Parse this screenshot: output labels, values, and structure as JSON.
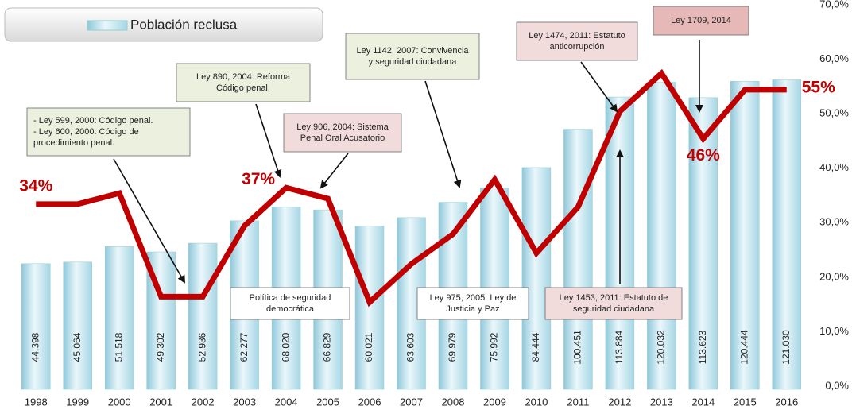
{
  "chart_data": {
    "type": "bar-line",
    "categories": [
      "1998",
      "1999",
      "2000",
      "2001",
      "2002",
      "2003",
      "2004",
      "2005",
      "2006",
      "2007",
      "2008",
      "2009",
      "2010",
      "2011",
      "2012",
      "2013",
      "2014",
      "2015",
      "2016"
    ],
    "series": [
      {
        "name": "Población reclusa",
        "type": "bar",
        "color": "#bfe3ee",
        "values": [
          44398,
          45064,
          51518,
          49302,
          52936,
          62277,
          68020,
          66829,
          60021,
          63603,
          69979,
          75992,
          84444,
          100451,
          113884,
          120032,
          113623,
          120444,
          121030
        ],
        "value_labels": [
          "44.398",
          "45.064",
          "51.518",
          "49.302",
          "52.936",
          "62.277",
          "68.020",
          "66.829",
          "60.021",
          "63.603",
          "69.979",
          "75.992",
          "84.444",
          "100.451",
          "113.884",
          "120.032",
          "113.623",
          "120.444",
          "121.030"
        ]
      },
      {
        "type": "line",
        "axis": "y2",
        "color": "#c00000",
        "values": [
          34,
          34,
          36,
          17,
          17,
          30,
          37,
          35,
          16,
          23,
          28.5,
          38.5,
          25,
          33.5,
          51,
          58,
          46,
          55,
          55
        ],
        "value_labels": [
          "34%",
          null,
          null,
          null,
          null,
          null,
          "37%",
          null,
          null,
          null,
          null,
          null,
          null,
          null,
          null,
          null,
          "46%",
          null,
          "55%"
        ]
      }
    ],
    "ylim": [
      -8000,
      151000
    ],
    "y2lim": [
      0,
      70
    ],
    "y2ticks": [
      {
        "value": 0,
        "label": "0,0%"
      },
      {
        "value": 10,
        "label": "10,0%"
      },
      {
        "value": 20,
        "label": "20,0%"
      },
      {
        "value": 30,
        "label": "30,0%"
      },
      {
        "value": 40,
        "label": "40,0%"
      },
      {
        "value": 50,
        "label": "50,0%"
      },
      {
        "value": 60,
        "label": "60,0%"
      },
      {
        "value": 70,
        "label": "70,0%"
      }
    ],
    "legend": "top-left",
    "annotations": [
      {
        "text": [
          "- Ley 599, 2000: Código penal.",
          "- Ley 600, 2000:  Código de",
          "procedimiento penal."
        ]
      },
      {
        "text": [
          "Ley 890, 2004:  Reforma",
          "Código penal."
        ]
      },
      {
        "text": [
          "Ley 906, 2004: Sistema",
          "Penal Oral Acusatorio"
        ]
      },
      {
        "text": [
          "Ley 1142, 2007: Convivencia",
          "y seguridad ciudadana"
        ]
      },
      {
        "text": [
          "Ley 1474, 2011: Estatuto",
          "anticorrupción"
        ]
      },
      {
        "text": [
          "Ley 1709, 2014"
        ]
      },
      {
        "text": [
          "Política de seguridad",
          "democrática"
        ]
      },
      {
        "text": [
          "Ley 975, 2005:   Ley de",
          "Justicia y Paz"
        ]
      },
      {
        "text": [
          "Ley 1453, 2011: Estatuto de",
          "seguridad ciudadana"
        ]
      }
    ]
  }
}
